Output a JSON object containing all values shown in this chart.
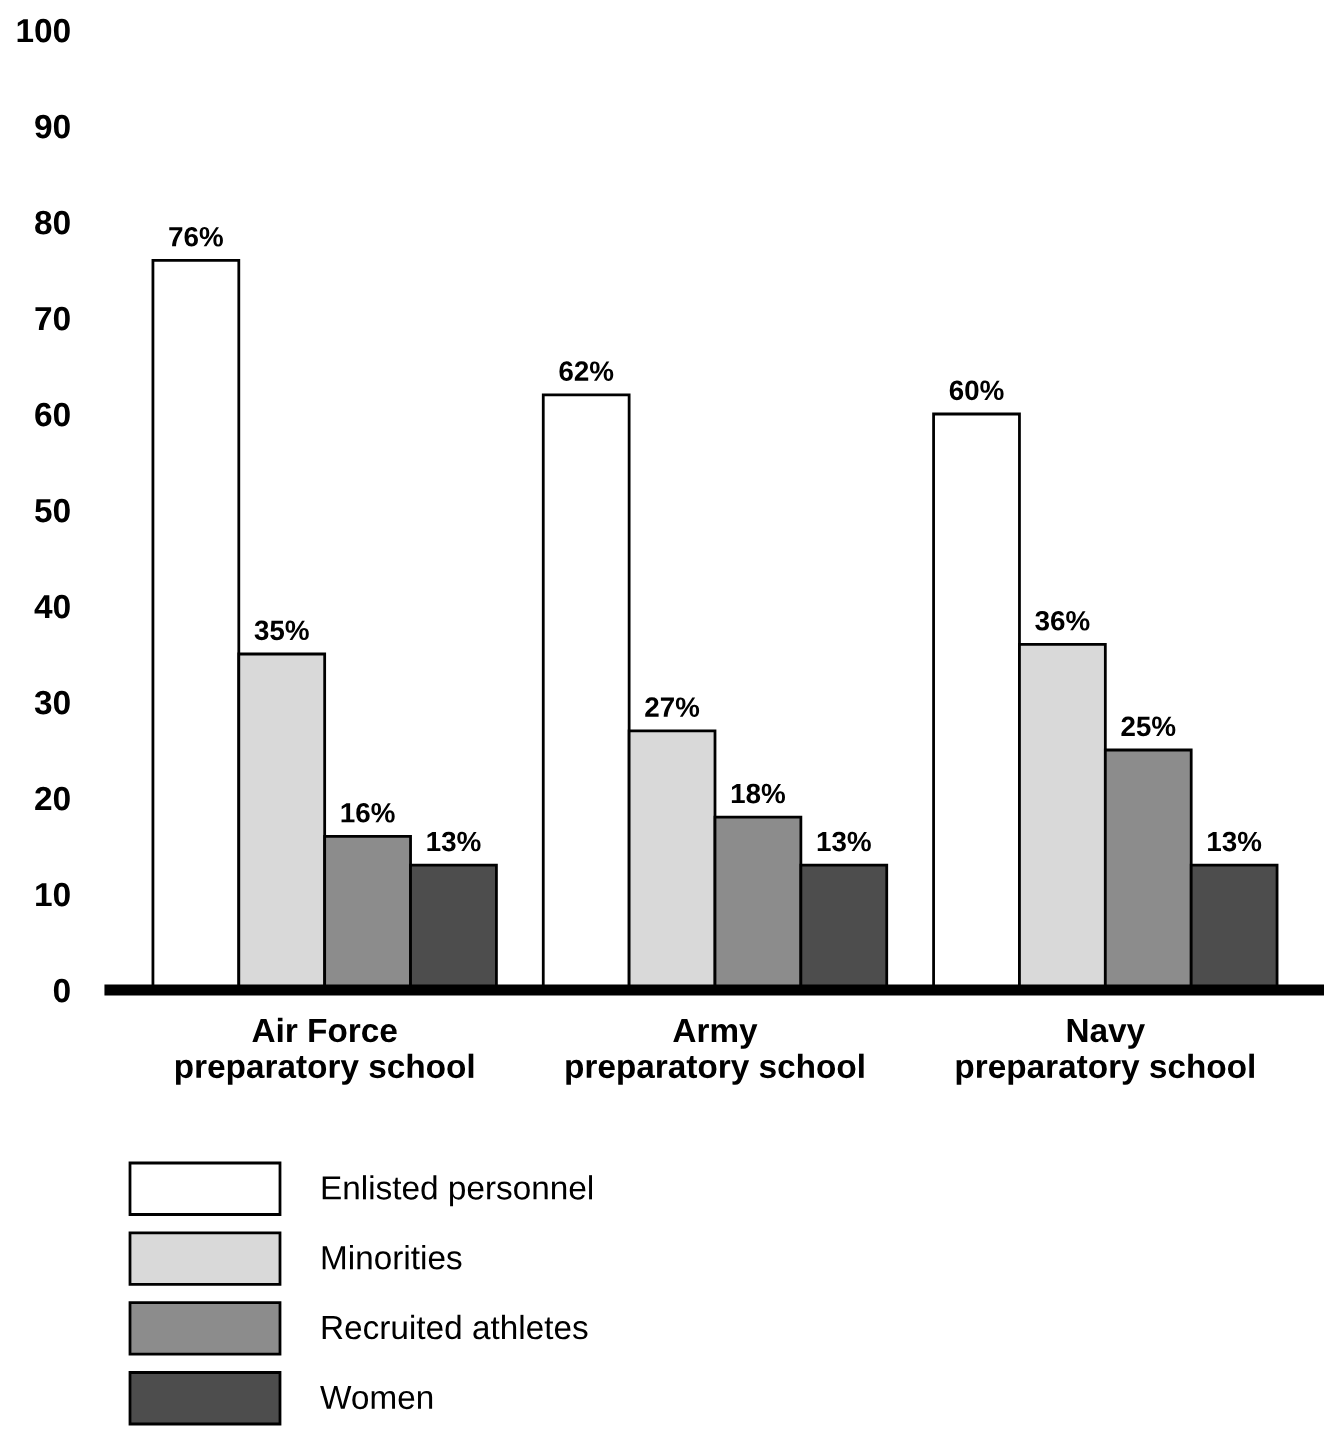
{
  "chart_data": {
    "type": "bar",
    "categories": [
      "Air Force\npreparatory school",
      "Army\npreparatory school",
      "Navy\npreparatory school"
    ],
    "series": [
      {
        "name": "Enlisted personnel",
        "color": "#ffffff",
        "values": [
          76,
          62,
          60
        ],
        "value_labels": [
          "76%",
          "62%",
          "60%"
        ]
      },
      {
        "name": "Minorities",
        "color": "#d9d9d9",
        "values": [
          35,
          27,
          36
        ],
        "value_labels": [
          "35%",
          "27%",
          "36%"
        ]
      },
      {
        "name": "Recruited athletes",
        "color": "#8c8c8c",
        "values": [
          16,
          18,
          25
        ],
        "value_labels": [
          "16%",
          "18%",
          "25%"
        ]
      },
      {
        "name": "Women",
        "color": "#4d4d4d",
        "values": [
          13,
          13,
          13
        ],
        "value_labels": [
          "13%",
          "13%",
          "13%"
        ]
      }
    ],
    "ylim": [
      0,
      100
    ],
    "yticks": [
      0,
      10,
      20,
      30,
      40,
      50,
      60,
      70,
      80,
      90,
      100
    ],
    "grid": false,
    "legend": "bottom"
  }
}
